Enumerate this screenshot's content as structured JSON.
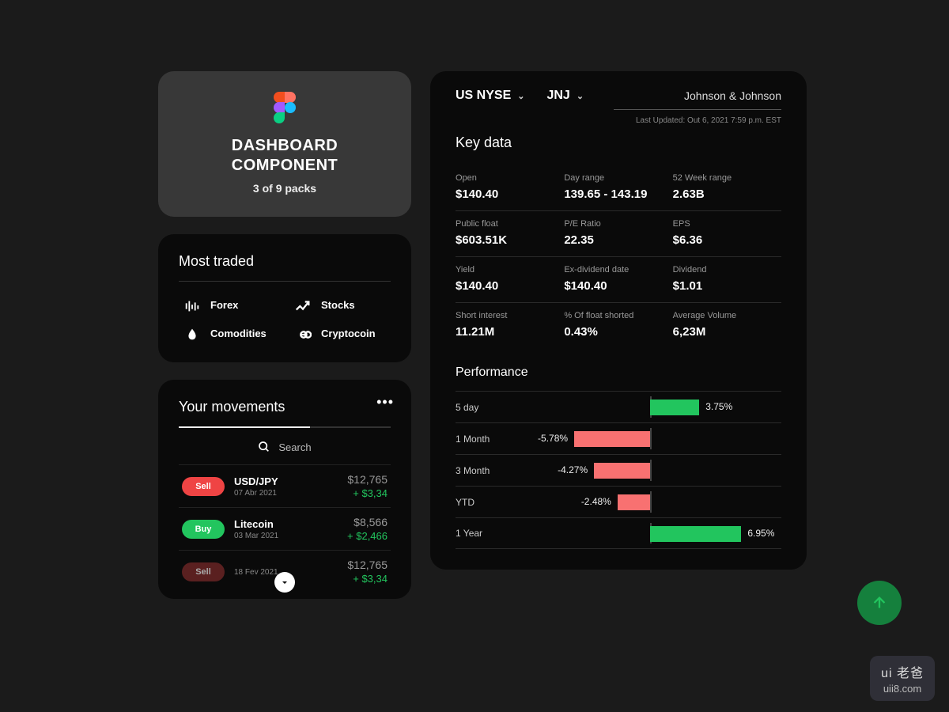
{
  "colors": {
    "card_bg": "#0a0a0a",
    "page_bg": "#1a1a1a",
    "green": "#22c55e",
    "red": "#ef4444",
    "muted": "#999999",
    "divider": "#2a2a2a"
  },
  "header": {
    "title_line1": "DASHBOARD",
    "title_line2": "COMPONENT",
    "subtitle": "3 of 9 packs"
  },
  "most_traded": {
    "title": "Most traded",
    "items": [
      {
        "icon": "forex",
        "label": "Forex"
      },
      {
        "icon": "stocks",
        "label": "Stocks"
      },
      {
        "icon": "commodities",
        "label": "Comodities"
      },
      {
        "icon": "crypto",
        "label": "Cryptocoin"
      }
    ]
  },
  "movements": {
    "title": "Your movements",
    "search_placeholder": "Search",
    "rows": [
      {
        "action": "Sell",
        "kind": "sell",
        "name": "USD/JPY",
        "date": "07 Abr 2021",
        "amount": "$12,765",
        "delta": "+ $3,34"
      },
      {
        "action": "Buy",
        "kind": "buy",
        "name": "Litecoin",
        "date": "03 Mar 2021",
        "amount": "$8,566",
        "delta": "+ $2,466"
      },
      {
        "action": "Sell",
        "kind": "sell_faded",
        "name": "",
        "date": "18 Fev 2021",
        "amount": "$12,765",
        "delta": "+ $3,34"
      }
    ]
  },
  "keydata": {
    "exchange": "US NYSE",
    "ticker": "JNJ",
    "company": "Johnson & Johnson",
    "last_updated": "Last Updated: Out 6, 2021 7:59 p.m. EST",
    "title": "Key data",
    "rows": [
      [
        {
          "label": "Open",
          "value": "$140.40"
        },
        {
          "label": "Day range",
          "value": "139.65 - 143.19"
        },
        {
          "label": "52 Week range",
          "value": "2.63B"
        }
      ],
      [
        {
          "label": "Public float",
          "value": "$603.51K"
        },
        {
          "label": "P/E Ratio",
          "value": "22.35"
        },
        {
          "label": "EPS",
          "value": "$6.36"
        }
      ],
      [
        {
          "label": "Yield",
          "value": "$140.40"
        },
        {
          "label": "Ex-dividend date",
          "value": "$140.40"
        },
        {
          "label": "Dividend",
          "value": "$1.01"
        }
      ],
      [
        {
          "label": "Short interest",
          "value": "11.21M"
        },
        {
          "label": "% Of float shorted",
          "value": "0.43%"
        },
        {
          "label": "Average Volume",
          "value": "6,23M"
        }
      ]
    ]
  },
  "performance": {
    "title": "Performance",
    "axis_max_pct": 10,
    "pos_color": "#22c55e",
    "neg_color": "#f87171",
    "rows": [
      {
        "label": "5 day",
        "value": 3.75,
        "text": "3.75%"
      },
      {
        "label": "1 Month",
        "value": -5.78,
        "text": "-5.78%"
      },
      {
        "label": "3 Month",
        "value": -4.27,
        "text": "-4.27%"
      },
      {
        "label": "YTD",
        "value": -2.48,
        "text": "-2.48%"
      },
      {
        "label": "1 Year",
        "value": 6.95,
        "text": "6.95%"
      }
    ]
  },
  "watermark": {
    "line1": "ui 老爸",
    "line2": "uii8.com"
  }
}
